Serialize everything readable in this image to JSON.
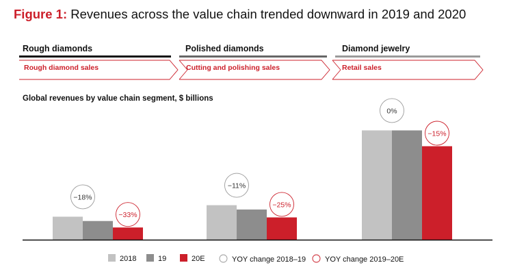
{
  "figure": {
    "label": "Figure 1:",
    "title": "Revenues across the value chain trended downward in 2019 and 2020"
  },
  "segments": [
    {
      "name": "Rough diamonds",
      "sub": "Rough diamond sales"
    },
    {
      "name": "Polished diamonds",
      "sub": "Cutting and polishing sales"
    },
    {
      "name": "Diamond jewelry",
      "sub": "Retail sales"
    }
  ],
  "colors": {
    "accent_red": "#cc1f2a",
    "bar_2018": "#c2c2c2",
    "bar_2019": "#8d8d8d",
    "bar_2020": "#cc1f2a",
    "rule_dark": "#111111",
    "rule_mid": "#666666",
    "rule_light": "#9a9a9a"
  },
  "chart_data": {
    "type": "bar",
    "subtitle": "Global revenues by value chain segment, $ billions",
    "categories": [
      "Rough diamonds",
      "Polished diamonds",
      "Diamond jewelry"
    ],
    "series": [
      {
        "name": "2018",
        "values": [
          16,
          24,
          76
        ]
      },
      {
        "name": "19",
        "values": [
          13,
          21,
          76
        ]
      },
      {
        "name": "20E",
        "values": [
          8.5,
          15.5,
          65
        ]
      }
    ],
    "annotations": [
      {
        "category": "Rough diamonds",
        "yoy_2018_19": "−18%",
        "yoy_2019_20": "−33%"
      },
      {
        "category": "Polished diamonds",
        "yoy_2018_19": "−11%",
        "yoy_2019_20": "−25%"
      },
      {
        "category": "Diamond jewelry",
        "yoy_2018_19": "0%",
        "yoy_2019_20": "−15%"
      }
    ],
    "ylim": [
      0,
      100
    ],
    "grid": false,
    "legend_position": "bottom",
    "legend": [
      "2018",
      "19",
      "20E",
      "YOY change 2018–19",
      "YOY change 2019–20E"
    ]
  }
}
